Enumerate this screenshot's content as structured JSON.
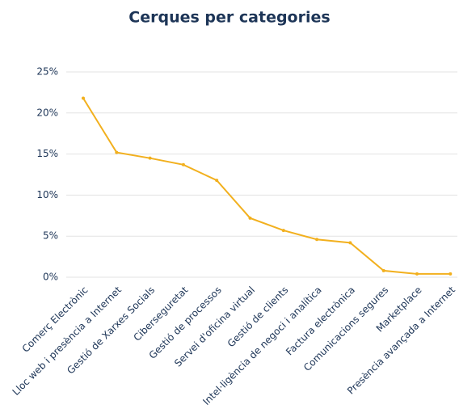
{
  "chart_data": {
    "type": "line",
    "title": "Cerques per categories",
    "categories": [
      "Comerç Electrònic",
      "Lloc web i presència a Internet",
      "Gestió de Xarxes Socials",
      "Ciberseguretat",
      "Gestió de processos",
      "Servei d'oficina virtual",
      "Gestió de clients",
      "Intel·ligència de negoci i analítica",
      "Factura electrònica",
      "Comunicacions segures",
      "Marketplace",
      "Presència avançada a Internet"
    ],
    "series": [
      {
        "name": "Cerques",
        "color": "#f2b01e",
        "values": [
          21.8,
          15.2,
          14.5,
          13.7,
          11.8,
          7.2,
          5.7,
          4.6,
          4.2,
          0.8,
          0.4,
          0.4
        ]
      }
    ],
    "ylim": [
      0,
      25
    ],
    "yticks": [
      {
        "value": 0,
        "label": "0%"
      },
      {
        "value": 5,
        "label": "5%"
      },
      {
        "value": 10,
        "label": "10%"
      },
      {
        "value": 15,
        "label": "15%"
      },
      {
        "value": 20,
        "label": "20%"
      },
      {
        "value": 25,
        "label": "25%"
      }
    ],
    "grid": true
  }
}
